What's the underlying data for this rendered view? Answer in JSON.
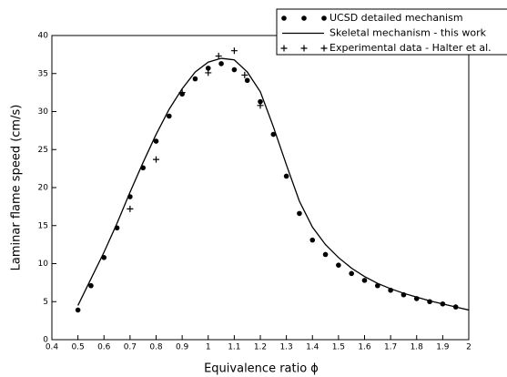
{
  "chart_data": {
    "type": "line",
    "xlabel": "Equivalence ratio  ϕ",
    "ylabel": "Laminar flame speed (cm/s)",
    "xlim": [
      0.4,
      2
    ],
    "xticks": [
      0.4,
      0.5,
      0.6,
      0.7,
      0.8,
      0.9,
      1,
      1.1,
      1.2,
      1.3,
      1.4,
      1.5,
      1.6,
      1.7,
      1.8,
      1.9,
      2
    ],
    "ylim": [
      0,
      40
    ],
    "yticks": [
      0,
      5,
      10,
      15,
      20,
      25,
      30,
      35,
      40
    ],
    "legend": "upper-right",
    "series": [
      {
        "name": "UCSD detailed mechanism",
        "color": "#000000",
        "marker": "dot",
        "x": [
          0.5,
          0.55,
          0.6,
          0.65,
          0.7,
          0.75,
          0.8,
          0.85,
          0.9,
          0.95,
          1.0,
          1.05,
          1.1,
          1.15,
          1.2,
          1.25,
          1.3,
          1.35,
          1.4,
          1.45,
          1.5,
          1.55,
          1.6,
          1.65,
          1.7,
          1.75,
          1.8,
          1.85,
          1.9,
          1.95
        ],
        "values": [
          3.9,
          7.1,
          10.8,
          14.7,
          18.8,
          22.6,
          26.1,
          29.4,
          32.3,
          34.3,
          35.7,
          36.3,
          35.5,
          34.1,
          31.3,
          27.0,
          21.5,
          16.6,
          13.1,
          11.2,
          9.8,
          8.7,
          7.8,
          7.1,
          6.5,
          5.9,
          5.4,
          5.0,
          4.7,
          4.3
        ]
      },
      {
        "name": "Skeletal mechanism - this work",
        "color": "#000000",
        "marker": "none",
        "x": [
          0.5,
          0.55,
          0.6,
          0.65,
          0.7,
          0.75,
          0.8,
          0.85,
          0.9,
          0.95,
          1.0,
          1.05,
          1.1,
          1.15,
          1.2,
          1.25,
          1.3,
          1.35,
          1.4,
          1.45,
          1.5,
          1.55,
          1.6,
          1.65,
          1.7,
          1.75,
          1.8,
          1.85,
          1.9,
          1.95,
          2.0
        ],
        "values": [
          4.5,
          8.0,
          11.5,
          15.3,
          19.4,
          23.3,
          27.0,
          30.3,
          33.0,
          35.2,
          36.5,
          37.0,
          36.8,
          35.2,
          32.6,
          28.0,
          23.0,
          18.2,
          14.8,
          12.5,
          10.8,
          9.4,
          8.3,
          7.4,
          6.7,
          6.1,
          5.6,
          5.1,
          4.7,
          4.3,
          3.9
        ]
      },
      {
        "name": "Experimental data - Halter et al.",
        "color": "#000000",
        "marker": "plus",
        "x": [
          0.7,
          0.8,
          0.9,
          1.0,
          1.04,
          1.1,
          1.14,
          1.2
        ],
        "values": [
          17.2,
          23.7,
          32.5,
          35.1,
          37.3,
          38.0,
          34.8,
          30.8
        ]
      }
    ]
  }
}
